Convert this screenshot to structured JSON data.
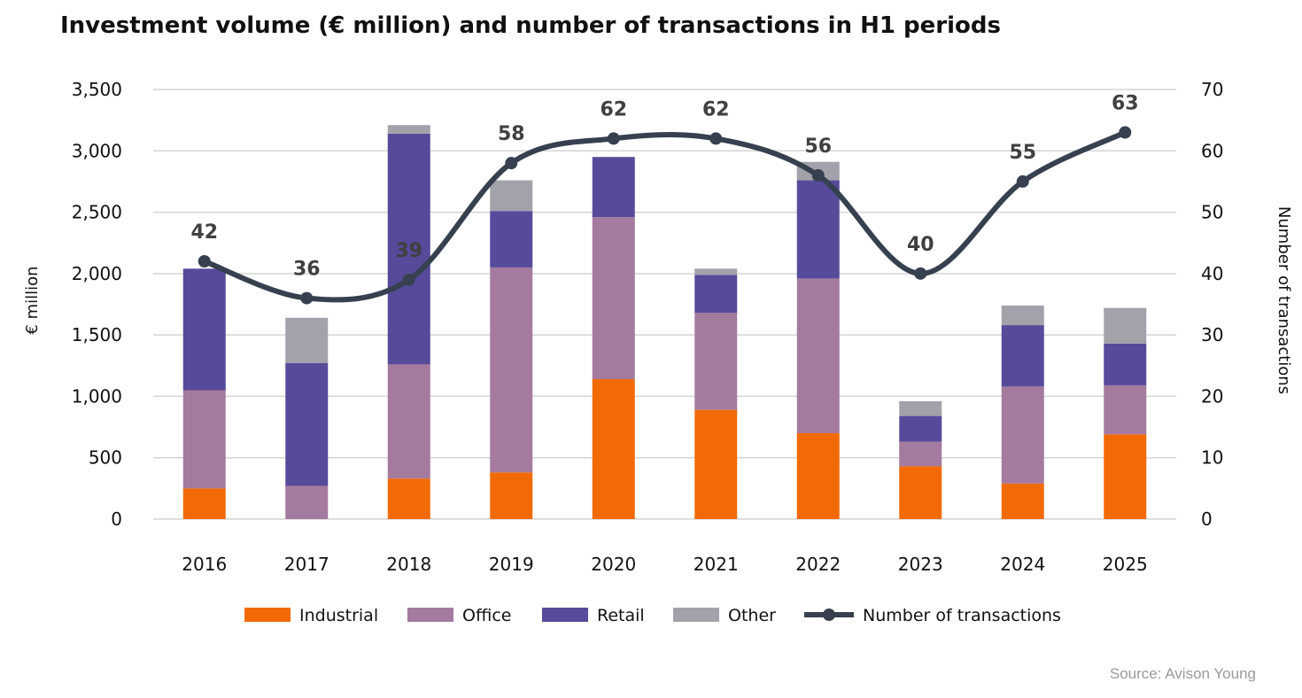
{
  "chart_data": {
    "type": "bar",
    "title": "Investment volume (€ million) and number of transactions in H1 periods",
    "categories": [
      "2016",
      "2017",
      "2018",
      "2019",
      "2020",
      "2021",
      "2022",
      "2023",
      "2024",
      "2025"
    ],
    "series": [
      {
        "name": "Industrial",
        "type": "bar",
        "axis": "left",
        "color": "#f26a06",
        "values": [
          250,
          0,
          330,
          380,
          1140,
          890,
          700,
          430,
          290,
          690
        ]
      },
      {
        "name": "Office",
        "type": "bar",
        "axis": "left",
        "color": "#a47a9f",
        "values": [
          800,
          270,
          930,
          1670,
          1320,
          790,
          1260,
          200,
          790,
          400
        ]
      },
      {
        "name": "Retail",
        "type": "bar",
        "axis": "left",
        "color": "#564a9a",
        "values": [
          990,
          1000,
          1880,
          460,
          490,
          310,
          800,
          210,
          500,
          340
        ]
      },
      {
        "name": "Other",
        "type": "bar",
        "axis": "left",
        "color": "#a2a2aa",
        "values": [
          0,
          370,
          70,
          250,
          0,
          50,
          150,
          120,
          160,
          290
        ]
      },
      {
        "name": "Number of transactions",
        "type": "line",
        "axis": "right",
        "color": "#36404f",
        "values": [
          42,
          36,
          39,
          58,
          62,
          62,
          56,
          40,
          55,
          63
        ]
      }
    ],
    "ylabel": "€ million",
    "ylim": [
      0,
      3500
    ],
    "yticks": [
      "3,500",
      "3,000",
      "2,500",
      "2,000",
      "1,500",
      "1,000",
      "500",
      "0"
    ],
    "y2label": "Number of transactions",
    "y2lim": [
      0,
      70
    ],
    "y2ticks": [
      "70",
      "60",
      "50",
      "40",
      "30",
      "20",
      "10",
      "0"
    ],
    "grid": true,
    "legend_position": "bottom"
  },
  "source": "Source: Avison Young"
}
